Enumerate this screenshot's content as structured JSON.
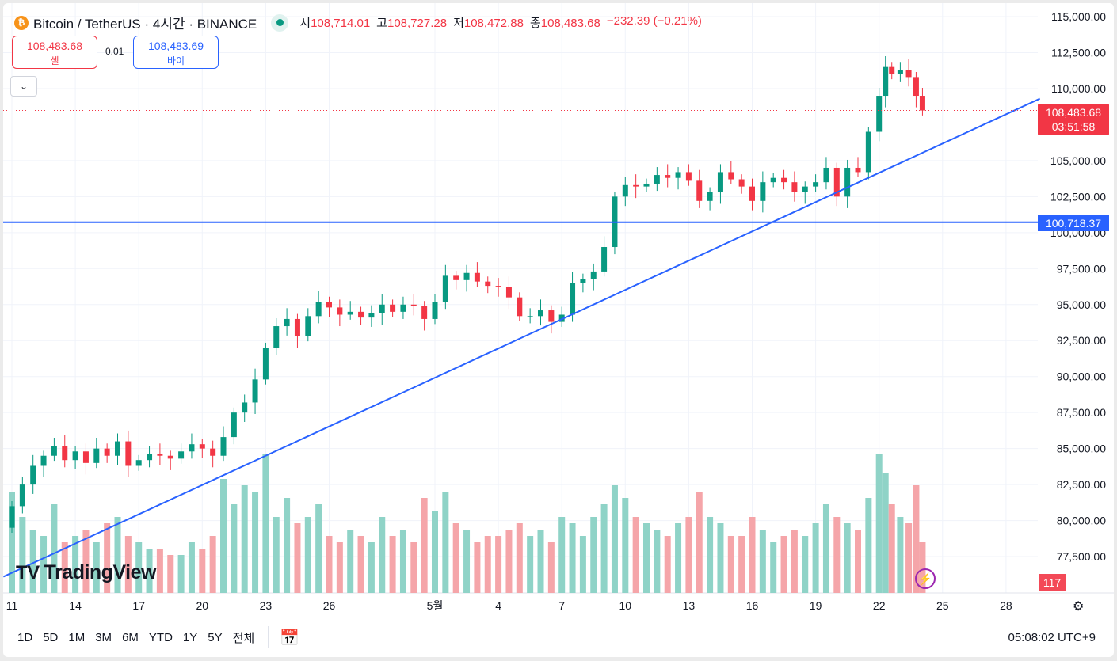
{
  "header": {
    "symbol": "Bitcoin / TetherUS · 4시간 · BINANCE",
    "logo_letter": "₿",
    "ohlc": [
      {
        "k": "시",
        "v": "108,714.01"
      },
      {
        "k": "고",
        "v": "108,727.28"
      },
      {
        "k": "저",
        "v": "108,472.88"
      },
      {
        "k": "종",
        "v": "108,483.68"
      }
    ],
    "change": "−232.39 (−0.21%)"
  },
  "trade": {
    "sell_price": "108,483.68",
    "sell_label": "셀",
    "spread": "0.01",
    "buy_price": "108,483.69",
    "buy_label": "바이",
    "collapse": "⌄"
  },
  "price_tags": {
    "last": "108,483.68",
    "countdown": "03:51:58",
    "hline": "100,718.37",
    "volume": "117"
  },
  "brand": "TradingView",
  "bottom": {
    "ranges": [
      "1D",
      "5D",
      "1M",
      "3M",
      "6M",
      "YTD",
      "1Y",
      "5Y",
      "전체"
    ],
    "clock": "05:08:02 UTC+9"
  },
  "colors": {
    "up": "#089981",
    "down": "#f23645",
    "line": "#2962ff",
    "volUp": "#8fd3c7",
    "volDown": "#f5a5a9"
  },
  "chart_data": {
    "type": "candlestick",
    "title": "Bitcoin / TetherUS · 4시간 · BINANCE",
    "y_ticks": [
      115000,
      112500,
      110000,
      105000,
      102500,
      100000,
      97500,
      95000,
      92500,
      90000,
      87500,
      85000,
      82500,
      80000,
      77500
    ],
    "y_range": [
      75900,
      115000
    ],
    "x_ticks": [
      {
        "d": 0,
        "l": "11"
      },
      {
        "d": 3,
        "l": "14"
      },
      {
        "d": 6,
        "l": "17"
      },
      {
        "d": 9,
        "l": "20"
      },
      {
        "d": 12,
        "l": "23"
      },
      {
        "d": 15,
        "l": "26"
      },
      {
        "d": 20,
        "l": "5월"
      },
      {
        "d": 23,
        "l": "4"
      },
      {
        "d": 26,
        "l": "7"
      },
      {
        "d": 29,
        "l": "10"
      },
      {
        "d": 32,
        "l": "13"
      },
      {
        "d": 35,
        "l": "16"
      },
      {
        "d": 38,
        "l": "19"
      },
      {
        "d": 41,
        "l": "22"
      },
      {
        "d": 44,
        "l": "25"
      },
      {
        "d": 47,
        "l": "28"
      }
    ],
    "x_unit": "days since Apr 11",
    "start_open": 79500,
    "closes": [
      [
        0,
        81000
      ],
      [
        0.5,
        82500
      ],
      [
        1,
        83800
      ],
      [
        1.5,
        84500
      ],
      [
        2,
        85200
      ],
      [
        2.5,
        84200
      ],
      [
        3,
        84800
      ],
      [
        3.5,
        84000
      ],
      [
        4,
        85000
      ],
      [
        4.5,
        84500
      ],
      [
        5,
        85500
      ],
      [
        5.5,
        83800
      ],
      [
        6,
        84200
      ],
      [
        6.5,
        84600
      ],
      [
        7,
        84500
      ],
      [
        7.5,
        84300
      ],
      [
        8,
        84800
      ],
      [
        8.5,
        85300
      ],
      [
        9,
        85000
      ],
      [
        9.5,
        84500
      ],
      [
        10,
        85800
      ],
      [
        10.5,
        87500
      ],
      [
        11,
        88200
      ],
      [
        11.5,
        89800
      ],
      [
        12,
        92000
      ],
      [
        12.5,
        93500
      ],
      [
        13,
        94000
      ],
      [
        13.5,
        92800
      ],
      [
        14,
        94200
      ],
      [
        14.5,
        95200
      ],
      [
        15,
        94800
      ],
      [
        15.5,
        94300
      ],
      [
        16,
        94500
      ],
      [
        16.5,
        94100
      ],
      [
        17,
        94400
      ],
      [
        17.5,
        95000
      ],
      [
        18,
        94500
      ],
      [
        18.5,
        95000
      ],
      [
        19,
        94900
      ],
      [
        19.5,
        94000
      ],
      [
        20,
        95200
      ],
      [
        20.5,
        97000
      ],
      [
        21,
        96700
      ],
      [
        21.5,
        97200
      ],
      [
        22,
        96600
      ],
      [
        22.5,
        96300
      ],
      [
        23,
        96200
      ],
      [
        23.5,
        95500
      ],
      [
        24,
        94200
      ],
      [
        24.5,
        94200
      ],
      [
        25,
        94600
      ],
      [
        25.5,
        93800
      ],
      [
        26,
        94300
      ],
      [
        26.5,
        96500
      ],
      [
        27,
        96800
      ],
      [
        27.5,
        97300
      ],
      [
        28,
        99000
      ],
      [
        28.5,
        102500
      ],
      [
        29,
        103300
      ],
      [
        29.5,
        103200
      ],
      [
        30,
        103400
      ],
      [
        30.5,
        104000
      ],
      [
        31,
        103800
      ],
      [
        31.5,
        104200
      ],
      [
        32,
        103600
      ],
      [
        32.5,
        102200
      ],
      [
        33,
        102800
      ],
      [
        33.5,
        104200
      ],
      [
        34,
        103700
      ],
      [
        34.5,
        103200
      ],
      [
        35,
        102200
      ],
      [
        35.5,
        103500
      ],
      [
        36,
        103800
      ],
      [
        36.5,
        103500
      ],
      [
        37,
        102800
      ],
      [
        37.5,
        103200
      ],
      [
        38,
        103500
      ],
      [
        38.5,
        104500
      ],
      [
        39,
        102500
      ],
      [
        39.5,
        104500
      ],
      [
        40,
        104200
      ],
      [
        40.5,
        107000
      ],
      [
        41,
        109500
      ],
      [
        41.3,
        111500
      ],
      [
        41.6,
        111000
      ],
      [
        42,
        111300
      ],
      [
        42.4,
        110800
      ],
      [
        42.75,
        109500
      ],
      [
        43.05,
        108484
      ]
    ],
    "volumes": [
      80,
      60,
      50,
      45,
      70,
      40,
      45,
      50,
      40,
      55,
      60,
      45,
      40,
      35,
      35,
      30,
      30,
      40,
      35,
      45,
      90,
      70,
      85,
      80,
      110,
      60,
      75,
      55,
      60,
      70,
      45,
      40,
      50,
      45,
      40,
      60,
      45,
      50,
      40,
      75,
      65,
      80,
      55,
      50,
      40,
      45,
      45,
      50,
      55,
      45,
      50,
      40,
      60,
      55,
      45,
      60,
      70,
      85,
      75,
      60,
      55,
      50,
      45,
      55,
      60,
      80,
      60,
      55,
      45,
      45,
      60,
      50,
      40,
      45,
      50,
      45,
      55,
      70,
      60,
      55,
      50,
      75,
      110,
      95,
      70,
      60,
      55,
      85,
      40
    ],
    "hline": 100718.37,
    "trendline": [
      [
        -0.4,
        76100
      ],
      [
        48.6,
        109300
      ]
    ],
    "last_price": 108483.68
  }
}
